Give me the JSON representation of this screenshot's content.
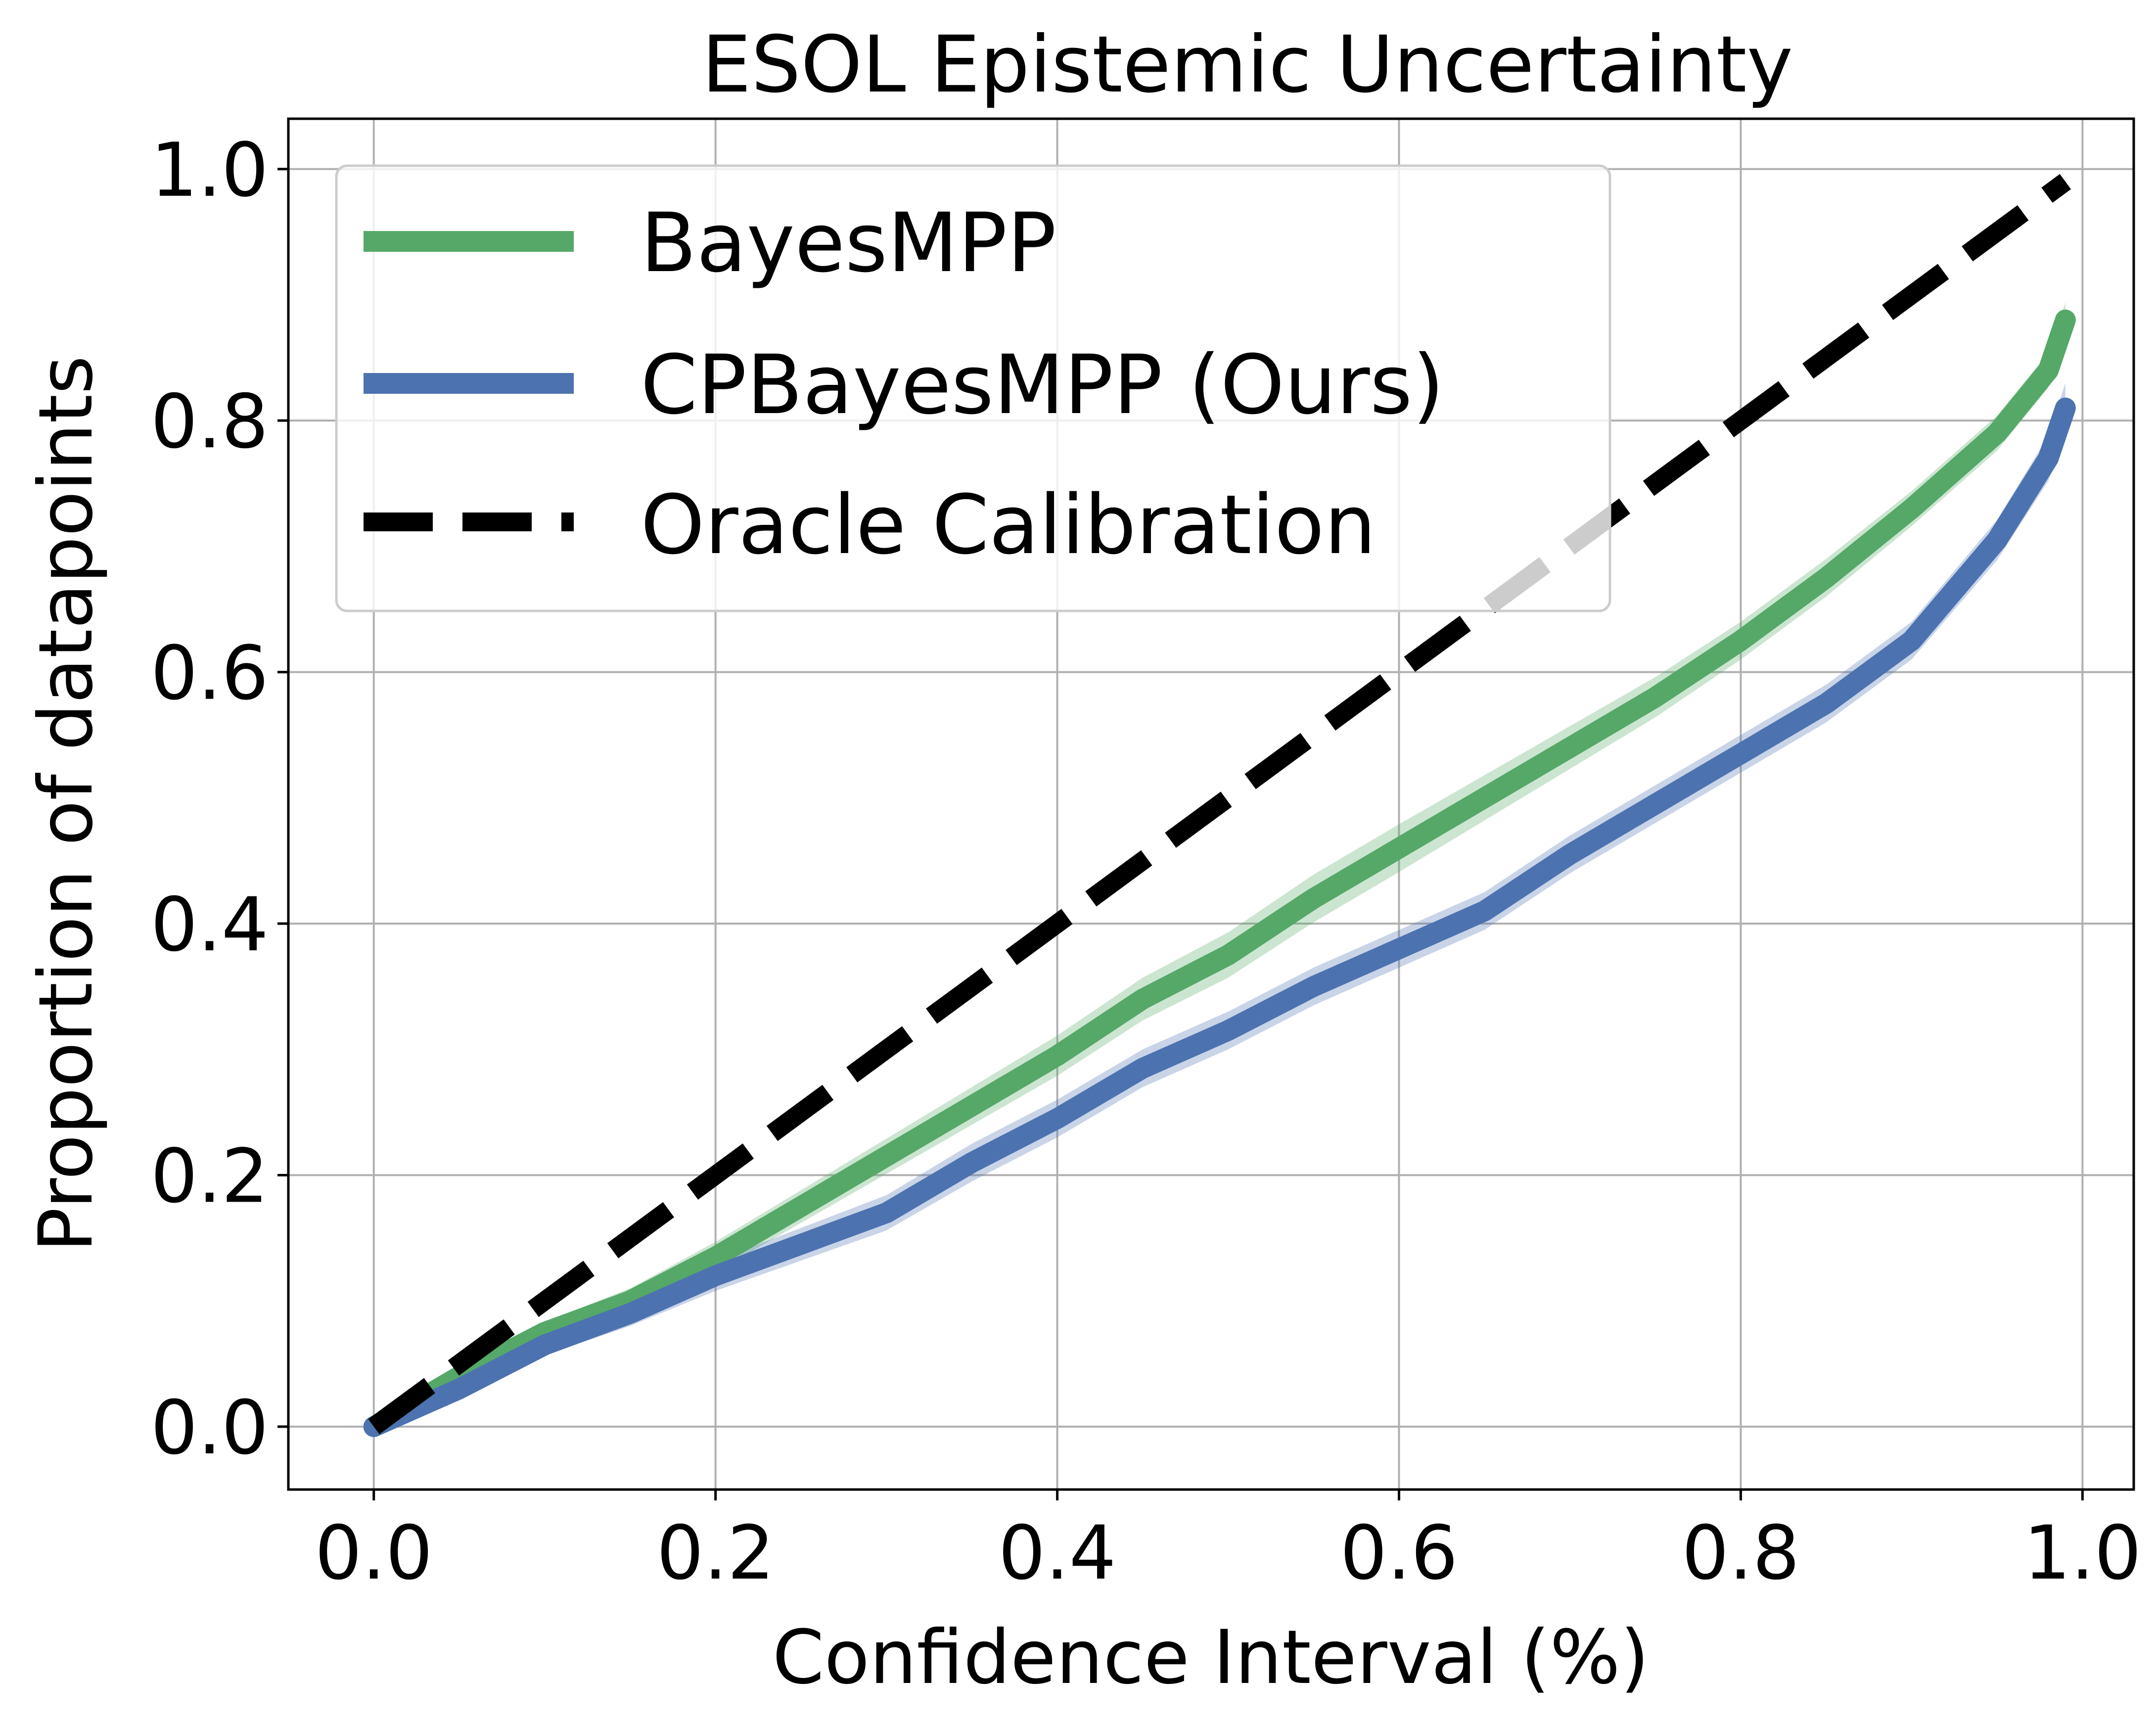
{
  "chart_data": {
    "type": "line",
    "title": "ESOL Epistemic Uncertainty",
    "xlabel": "Confidence Interval (%)",
    "ylabel": "Proportion of datapoints",
    "xlim": [
      -0.05,
      1.03
    ],
    "ylim": [
      -0.05,
      1.04
    ],
    "xticks": [
      0.0,
      0.2,
      0.4,
      0.6,
      0.8,
      1.0
    ],
    "yticks": [
      0.0,
      0.2,
      0.4,
      0.6,
      0.8,
      1.0
    ],
    "xtick_labels": [
      "0.0",
      "0.2",
      "0.4",
      "0.6",
      "0.8",
      "1.0"
    ],
    "ytick_labels": [
      "0.0",
      "0.2",
      "0.4",
      "0.6",
      "0.8",
      "1.0"
    ],
    "grid": true,
    "legend_position": "upper-left",
    "series": [
      {
        "name": "BayesMPP",
        "color": "#55a868",
        "style": "solid",
        "band": true,
        "x": [
          0.0,
          0.05,
          0.1,
          0.15,
          0.2,
          0.25,
          0.3,
          0.35,
          0.4,
          0.45,
          0.5,
          0.55,
          0.6,
          0.65,
          0.7,
          0.75,
          0.8,
          0.85,
          0.9,
          0.95,
          0.98,
          0.99
        ],
        "y": [
          0.0,
          0.04,
          0.075,
          0.1,
          0.135,
          0.175,
          0.215,
          0.255,
          0.295,
          0.34,
          0.375,
          0.42,
          0.46,
          0.5,
          0.54,
          0.58,
          0.625,
          0.675,
          0.73,
          0.79,
          0.84,
          0.88
        ],
        "band_width": [
          0.0,
          0.005,
          0.008,
          0.01,
          0.012,
          0.013,
          0.014,
          0.015,
          0.016,
          0.017,
          0.018,
          0.019,
          0.019,
          0.018,
          0.017,
          0.016,
          0.015,
          0.015,
          0.014,
          0.014,
          0.014,
          0.014
        ]
      },
      {
        "name": "CPBayesMPP (Ours)",
        "color": "#4c72b0",
        "style": "solid",
        "band": true,
        "x": [
          0.0,
          0.05,
          0.1,
          0.15,
          0.2,
          0.25,
          0.3,
          0.35,
          0.4,
          0.45,
          0.5,
          0.55,
          0.6,
          0.65,
          0.7,
          0.75,
          0.8,
          0.85,
          0.9,
          0.95,
          0.98,
          0.99
        ],
        "y": [
          0.0,
          0.03,
          0.065,
          0.09,
          0.12,
          0.145,
          0.17,
          0.21,
          0.245,
          0.285,
          0.315,
          0.35,
          0.38,
          0.41,
          0.455,
          0.495,
          0.535,
          0.575,
          0.625,
          0.705,
          0.77,
          0.81
        ],
        "band_width": [
          0.0,
          0.005,
          0.008,
          0.01,
          0.012,
          0.013,
          0.014,
          0.015,
          0.015,
          0.015,
          0.015,
          0.015,
          0.015,
          0.015,
          0.015,
          0.015,
          0.015,
          0.015,
          0.015,
          0.016,
          0.018,
          0.02
        ]
      },
      {
        "name": "Oracle Calibration",
        "color": "#000000",
        "style": "dashed",
        "band": false,
        "x": [
          0.0,
          0.99
        ],
        "y": [
          0.0,
          0.99
        ]
      }
    ]
  }
}
